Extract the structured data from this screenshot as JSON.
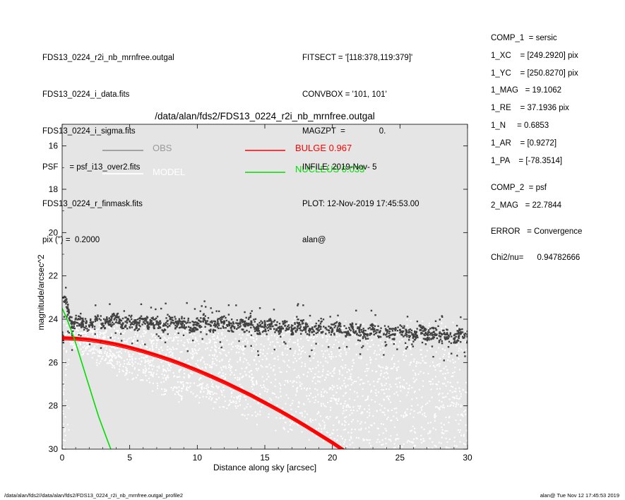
{
  "header_left": [
    "FDS13_0224_r2i_nb_mrnfree.outgal",
    "FDS13_0224_i_data.fits",
    "FDS13_0224_i_sigma.fits",
    "PSF     = psf_i13_over2.fits",
    "FDS13_0224_r_finmask.fits",
    "pix (\") =  0.2000"
  ],
  "header_mid": [
    "FITSECT = '[118:378,119:379]'",
    "CONVBOX = '101, 101'",
    "MAGZPT  =               0.",
    "INFILE: 2019-Nov- 5",
    "PLOT: 12-Nov-2019 17:45:53.00",
    "alan@"
  ],
  "params": [
    "COMP_1  = sersic",
    "1_XC    = [249.2920] pix",
    "1_YC    = [250.8270] pix",
    "1_MAG   = 19.1062",
    "1_RE    = 37.1936 pix",
    "1_N     = 0.6853",
    "1_AR    = [0.9272]",
    "1_PA    = [-78.3514]",
    "COMP_2  = psf",
    "2_MAG   = 22.7844",
    "ERROR   = Convergence",
    "Chi2/nu=      0.94782666"
  ],
  "footer": {
    "left": "/data/alan/fds2//data/alan/fds2/FDS13_0224_r2i_nb_mrnfree.outgal_profile2",
    "right": "alan@  Tue Nov 12 17:45:53 2019"
  },
  "chart_data": {
    "type": "scatter",
    "title": "/data/alan/fds2/FDS13_0224_r2i_nb_mrnfree.outgal",
    "xlabel": "Distance along sky [arcsec]",
    "ylabel": "magnitude/arcsec^2",
    "xlim": [
      0,
      30
    ],
    "ylim": [
      30,
      15
    ],
    "y_inverted": true,
    "xticks": [
      0,
      5,
      10,
      15,
      20,
      25,
      30
    ],
    "yticks": [
      16,
      18,
      20,
      22,
      24,
      26,
      28,
      30
    ],
    "background": "#e5e5e5",
    "grid": false,
    "legend": [
      {
        "label": "OBS",
        "color": "#999999"
      },
      {
        "label": "MODEL",
        "color": "#ffffff"
      },
      {
        "label": "BULGE  0.967",
        "color": "#ff0000"
      },
      {
        "label": "NUCLEUS  0.033",
        "color": "#00dd00"
      }
    ],
    "series": [
      {
        "name": "OBS",
        "color": "#404040",
        "points": [
          [
            0.1,
            23.0
          ],
          [
            0.2,
            23.2
          ],
          [
            0.3,
            23.1
          ],
          [
            0.4,
            23.5
          ],
          [
            0.5,
            23.7
          ],
          [
            0.6,
            23.9
          ],
          [
            0.7,
            24.1
          ],
          [
            0.8,
            24.4
          ],
          [
            1,
            24.0
          ],
          [
            1.5,
            24.1
          ],
          [
            2,
            24.3
          ],
          [
            2.5,
            24.0
          ],
          [
            3,
            24.2
          ],
          [
            3.5,
            24.1
          ],
          [
            4,
            23.9
          ],
          [
            4.5,
            24.2
          ],
          [
            5,
            24.1
          ],
          [
            5.5,
            24.3
          ],
          [
            6,
            24.0
          ],
          [
            6.5,
            24.2
          ],
          [
            7,
            24.1
          ],
          [
            7.5,
            24.3
          ],
          [
            8,
            24.0
          ],
          [
            8.5,
            24.2
          ],
          [
            9,
            24.1
          ],
          [
            9.5,
            24.4
          ],
          [
            10,
            24.2
          ],
          [
            10.5,
            24.0
          ],
          [
            11,
            24.3
          ],
          [
            11.5,
            24.2
          ],
          [
            12,
            24.1
          ],
          [
            12.5,
            24.4
          ],
          [
            13,
            24.2
          ],
          [
            13.5,
            24.3
          ],
          [
            14,
            24.1
          ],
          [
            14.5,
            24.5
          ],
          [
            15,
            24.3
          ],
          [
            15.5,
            24.2
          ],
          [
            16,
            24.4
          ],
          [
            16.5,
            24.3
          ],
          [
            17,
            24.5
          ],
          [
            17.5,
            24.2
          ],
          [
            18,
            24.4
          ],
          [
            18.5,
            24.6
          ],
          [
            19,
            24.3
          ],
          [
            19.5,
            24.4
          ],
          [
            20,
            24.5
          ],
          [
            20.5,
            24.3
          ],
          [
            21,
            24.6
          ],
          [
            21.5,
            24.4
          ],
          [
            22,
            24.5
          ],
          [
            22.5,
            24.7
          ],
          [
            23,
            24.4
          ],
          [
            23.5,
            24.6
          ],
          [
            24,
            24.5
          ],
          [
            24.5,
            24.7
          ],
          [
            25,
            24.5
          ],
          [
            25.5,
            24.6
          ],
          [
            26,
            24.8
          ],
          [
            26.5,
            24.5
          ],
          [
            27,
            24.7
          ],
          [
            27.5,
            24.6
          ],
          [
            28,
            24.8
          ],
          [
            28.5,
            24.7
          ],
          [
            29,
            24.9
          ],
          [
            29.5,
            24.6
          ],
          [
            30,
            24.8
          ]
        ]
      },
      {
        "name": "MODEL",
        "color": "#ffffff",
        "points": [
          [
            0.5,
            25.0
          ],
          [
            2,
            25.5
          ],
          [
            4,
            26.0
          ],
          [
            6,
            26.5
          ],
          [
            8,
            27.0
          ],
          [
            10,
            27.3
          ],
          [
            12,
            27.6
          ],
          [
            14,
            27.9
          ],
          [
            16,
            28.3
          ],
          [
            18,
            28.6
          ],
          [
            20,
            28.9
          ],
          [
            22,
            29.2
          ],
          [
            24,
            29.5
          ],
          [
            26,
            29.7
          ],
          [
            28,
            29.9
          ],
          [
            30,
            30.0
          ]
        ]
      },
      {
        "name": "BULGE  0.967",
        "color": "#ff0000",
        "x": [
          0,
          1,
          2,
          3,
          4,
          5,
          6,
          7,
          8,
          9,
          10,
          11,
          12,
          13,
          14,
          15,
          16,
          17,
          18,
          19,
          20,
          21
        ],
        "y": [
          24.85,
          24.87,
          24.93,
          25.02,
          25.14,
          25.29,
          25.46,
          25.65,
          25.86,
          26.09,
          26.34,
          26.61,
          26.89,
          27.19,
          27.5,
          27.83,
          28.17,
          28.53,
          28.9,
          29.29,
          29.68,
          30.1
        ]
      },
      {
        "name": "NUCLEUS  0.033",
        "color": "#00dd00",
        "x": [
          0.0,
          0.3,
          0.6,
          0.9,
          1.2,
          1.5,
          1.8,
          2.1,
          2.4,
          2.7,
          3.0,
          3.3,
          3.6
        ],
        "y": [
          23.5,
          23.9,
          24.4,
          24.9,
          25.5,
          26.1,
          26.7,
          27.3,
          27.9,
          28.5,
          29.0,
          29.5,
          30.0
        ]
      }
    ]
  }
}
